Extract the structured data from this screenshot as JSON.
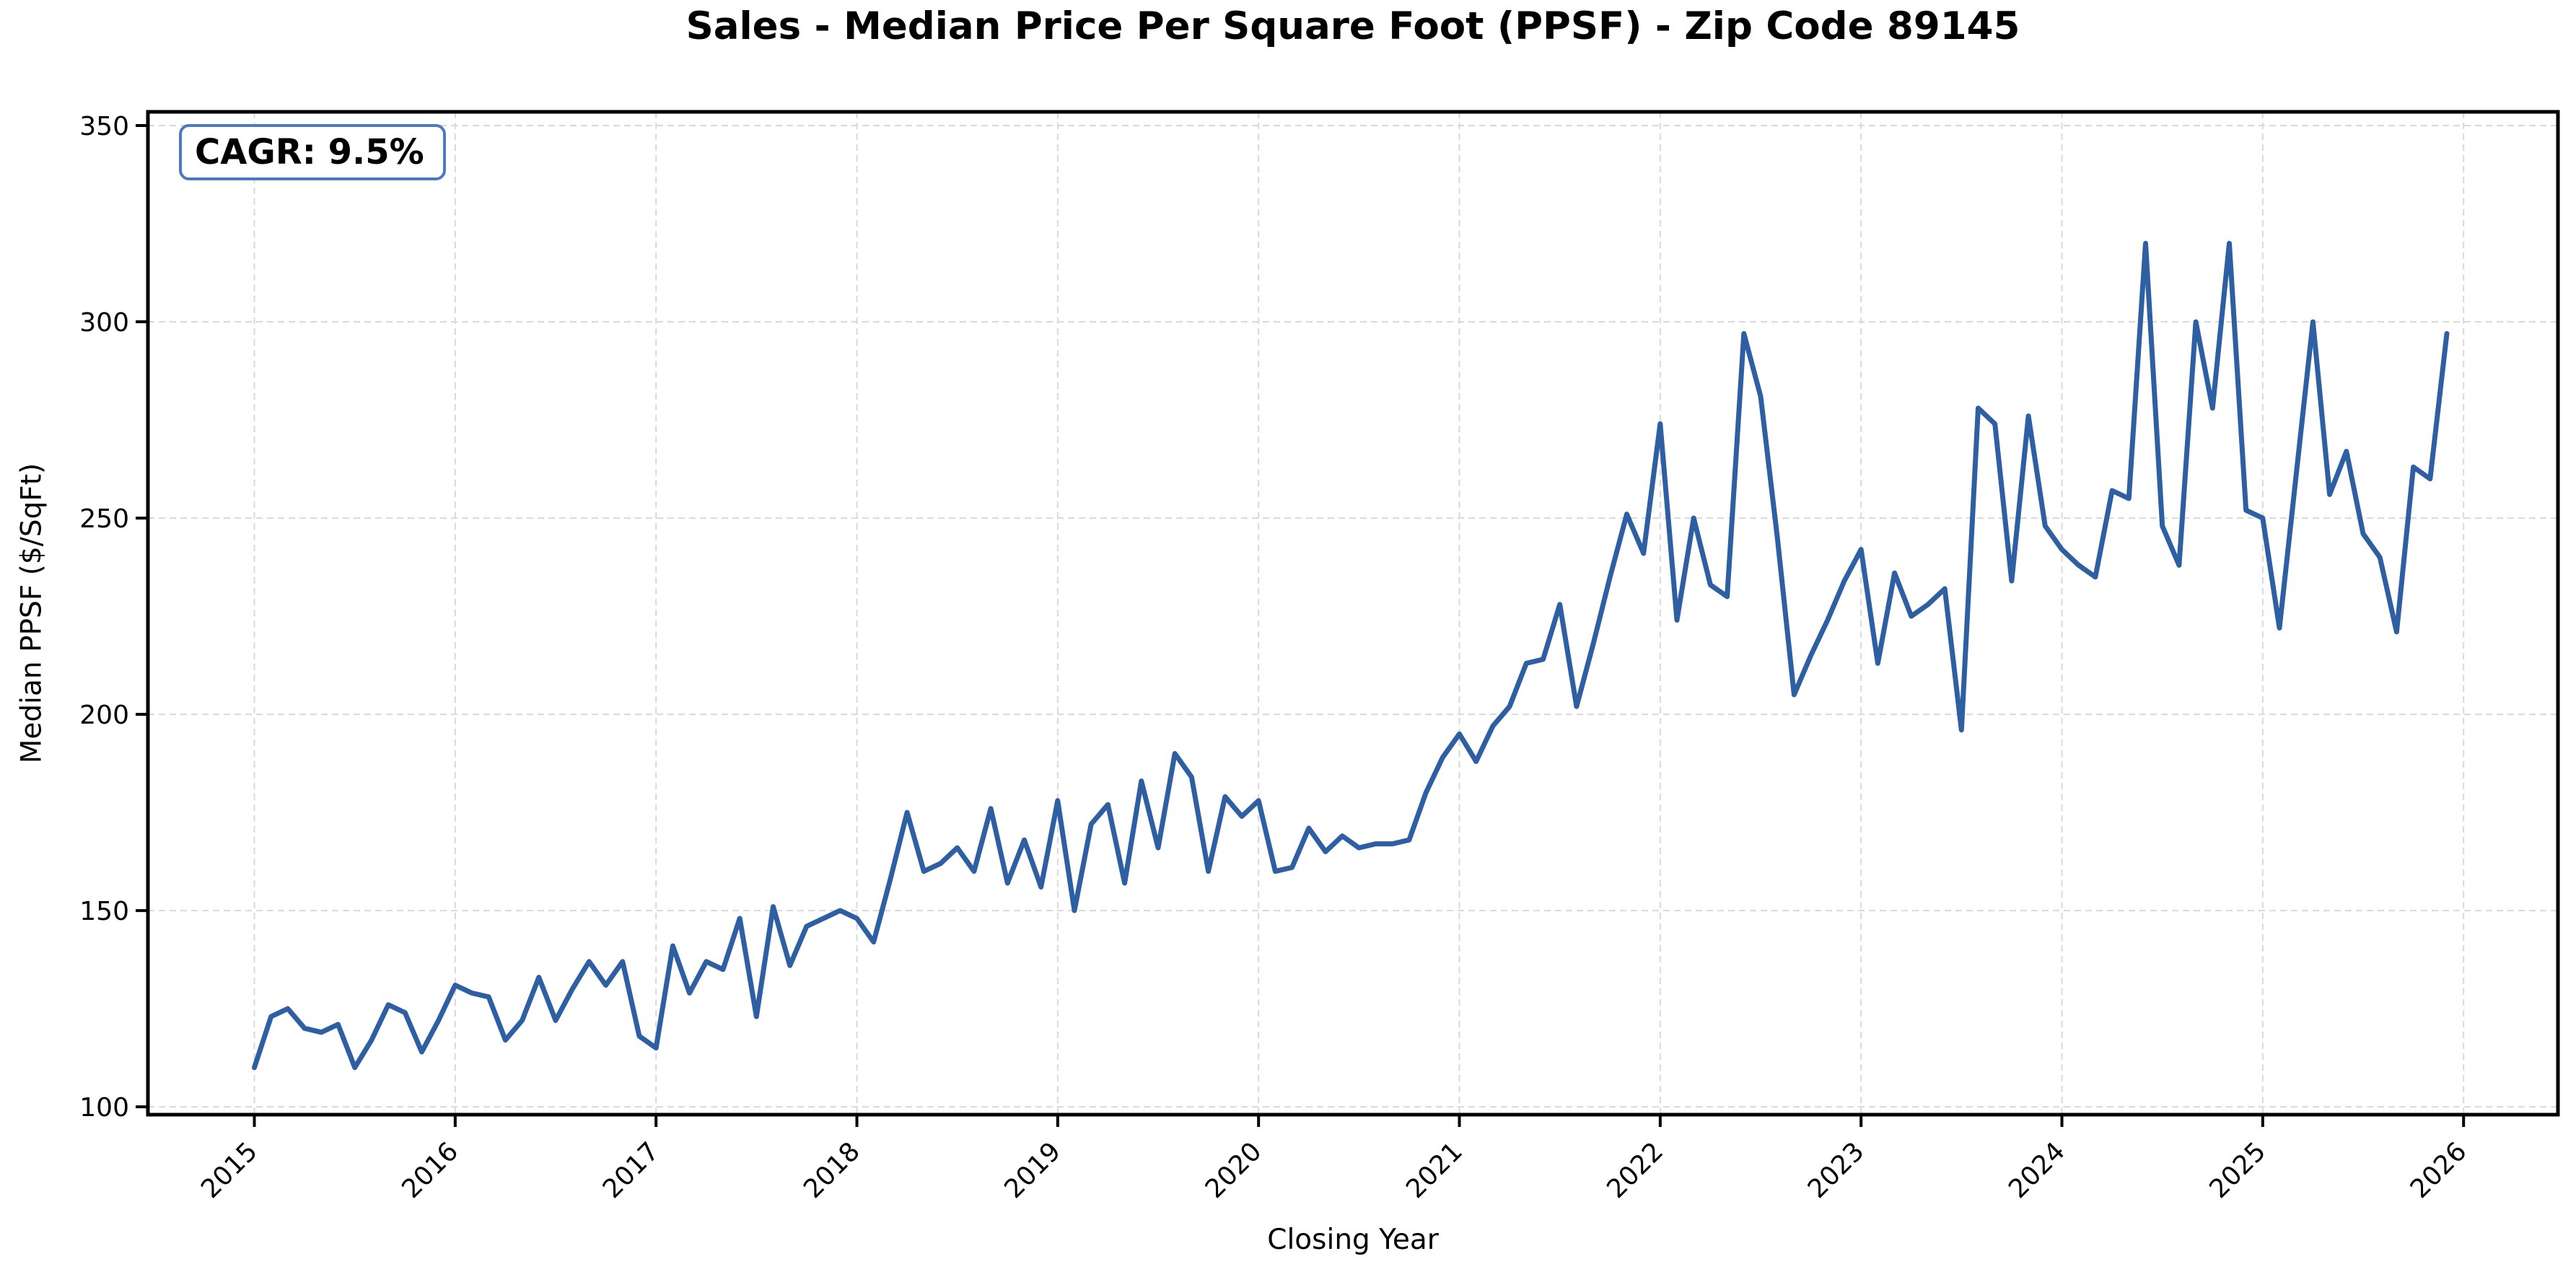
{
  "title": "Sales - Median Price Per Square Foot (PPSF) - Zip Code 89145",
  "annotation": {
    "label": "CAGR: 9.5%"
  },
  "axes": {
    "x_label": "Closing Year",
    "y_label": "Median PPSF ($/SqFt)",
    "x_tick_labels": [
      "2015",
      "2016",
      "2017",
      "2018",
      "2019",
      "2020",
      "2021",
      "2022",
      "2023",
      "2024",
      "2025",
      "2026"
    ],
    "y_tick_labels": [
      "100",
      "150",
      "200",
      "250",
      "300",
      "350"
    ]
  },
  "colors": {
    "line": "#2e5fa3",
    "annotation_border": "#4e79bd",
    "grid": "#d9d9d9",
    "axis": "#000000",
    "text": "#000000",
    "background": "#ffffff"
  },
  "chart_data": {
    "type": "line",
    "title": "Sales - Median Price Per Square Foot (PPSF) - Zip Code 89145",
    "xlabel": "Closing Year",
    "ylabel": "Median PPSF ($/SqFt)",
    "annotation": "CAGR: 9.5%",
    "x_start": "2015-01",
    "x_end": "2025-12",
    "x_interval": "monthly",
    "x_tick_years": [
      2015,
      2016,
      2017,
      2018,
      2019,
      2020,
      2021,
      2022,
      2023,
      2024,
      2025,
      2026
    ],
    "y_tick_values": [
      100,
      150,
      200,
      250,
      300,
      350
    ],
    "xlim": [
      2014.47,
      2026.47
    ],
    "ylim": [
      98,
      353.5
    ],
    "grid": true,
    "legend": false,
    "series": [
      {
        "name": "Median PPSF ($/SqFt)",
        "monthly_values_by_year": {
          "2015": [
            110,
            123,
            125,
            120,
            119,
            121,
            110,
            117,
            126,
            124,
            114,
            122
          ],
          "2016": [
            131,
            129,
            128,
            117,
            122,
            133,
            122,
            130,
            137,
            131,
            137,
            118
          ],
          "2017": [
            115,
            141,
            129,
            137,
            135,
            148,
            123,
            151,
            136,
            146,
            148,
            150
          ],
          "2018": [
            148,
            142,
            158,
            175,
            160,
            162,
            166,
            160,
            176,
            157,
            168,
            156
          ],
          "2019": [
            178,
            150,
            172,
            177,
            157,
            183,
            166,
            190,
            184,
            160,
            179,
            174
          ],
          "2020": [
            178,
            160,
            161,
            171,
            165,
            169,
            166,
            167,
            167,
            168,
            180,
            189
          ],
          "2021": [
            195,
            188,
            197,
            202,
            213,
            214,
            228,
            202,
            218,
            235,
            251,
            241
          ],
          "2022": [
            274,
            224,
            250,
            233,
            230,
            297,
            281,
            245,
            205,
            215,
            224,
            234
          ],
          "2023": [
            242,
            213,
            236,
            225,
            228,
            232,
            196,
            278,
            274,
            234,
            276,
            248
          ],
          "2024": [
            242,
            238,
            235,
            257,
            255,
            320,
            248,
            238,
            300,
            278,
            320,
            252
          ],
          "2025": [
            250,
            222,
            261,
            300,
            256,
            267,
            246,
            240,
            221,
            263,
            260,
            297
          ]
        }
      }
    ]
  }
}
